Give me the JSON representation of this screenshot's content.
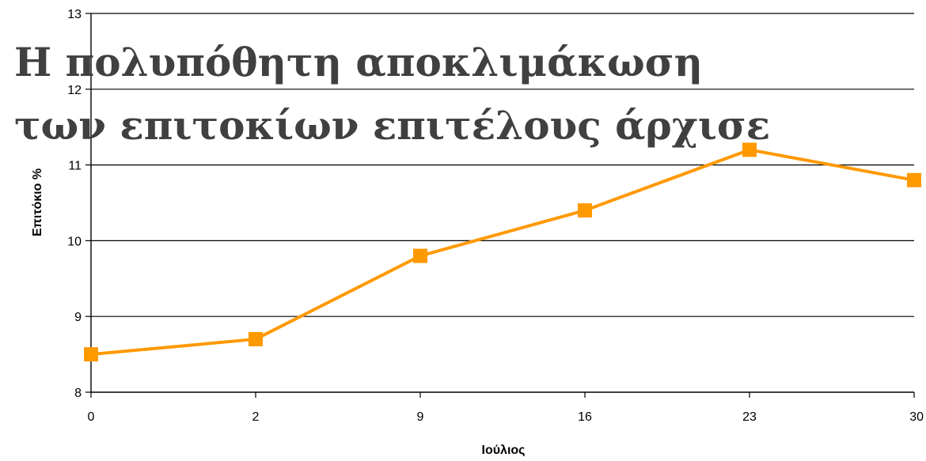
{
  "chart_data": {
    "type": "line",
    "title_lines": [
      "Η πολυπόθητη αποκλιμάκωση",
      "των επιτοκίων επιτέλους άρχισε"
    ],
    "xlabel": "Ιούλιος",
    "ylabel": "Επιτόκιο %",
    "categories": [
      "0",
      "2",
      "9",
      "16",
      "23",
      "30"
    ],
    "series": [
      {
        "values": [
          8.5,
          8.7,
          9.8,
          10.4,
          11.2,
          10.8
        ],
        "color": "#ff9900"
      }
    ],
    "ylim": [
      8,
      13
    ],
    "yticks": [
      8,
      9,
      10,
      11,
      12,
      13
    ],
    "grid": true,
    "legend": "none"
  }
}
